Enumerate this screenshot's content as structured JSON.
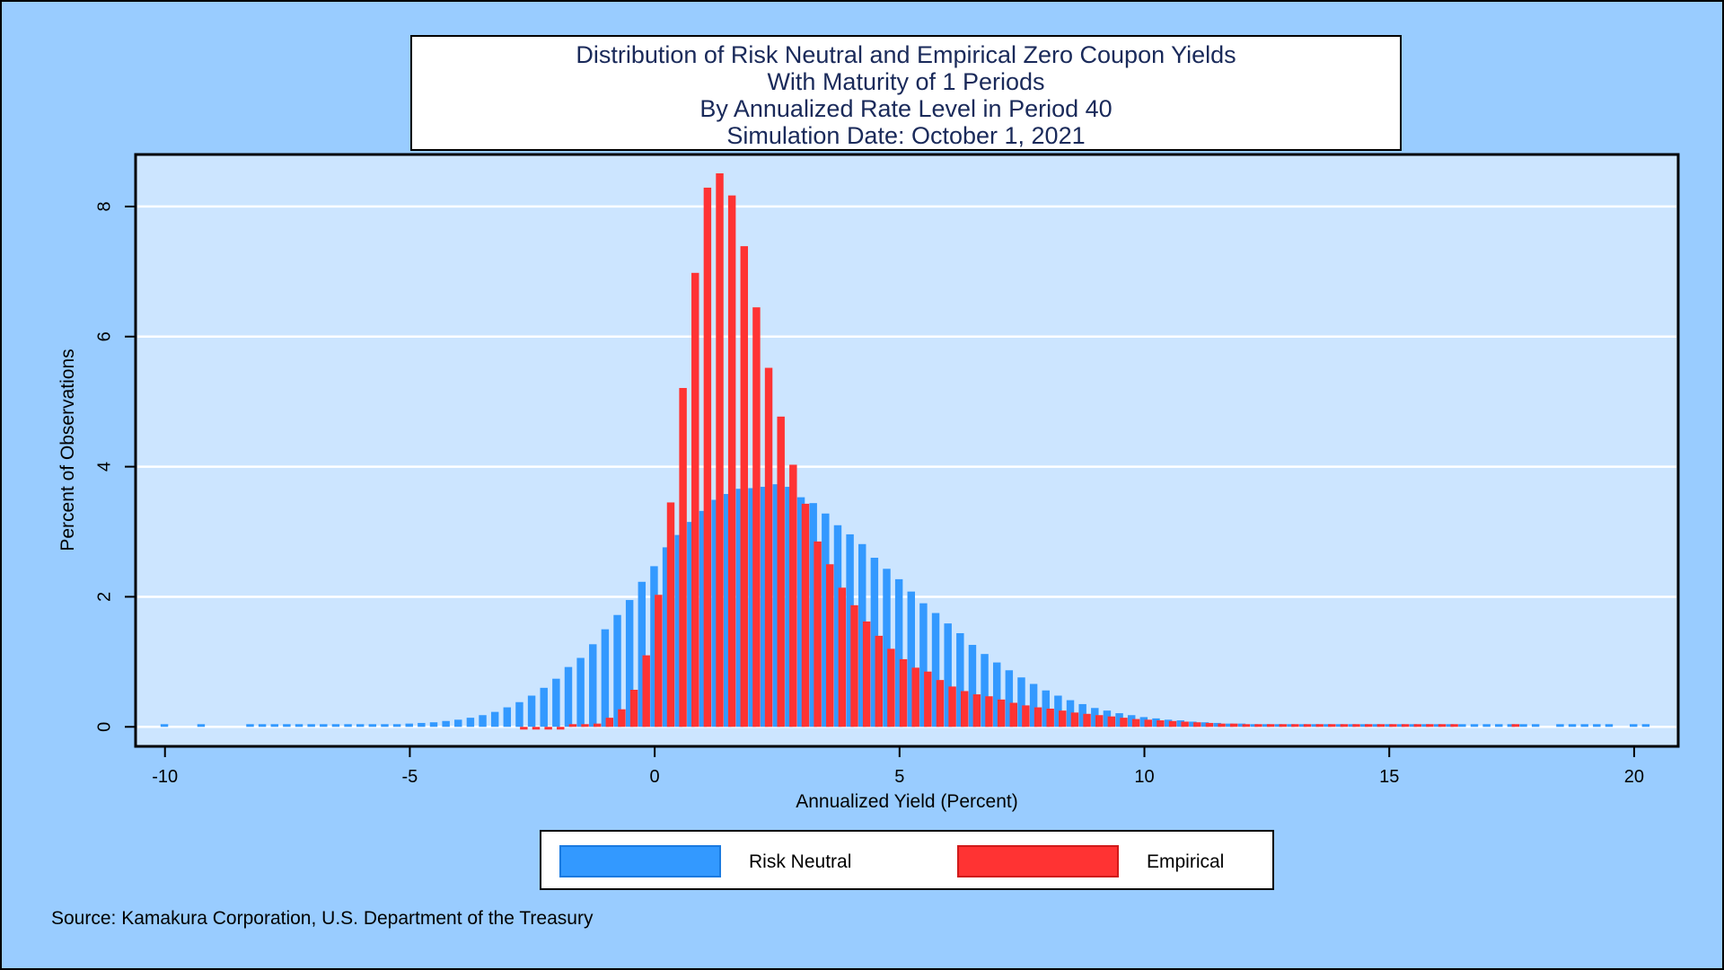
{
  "title_lines": [
    "Distribution of Risk Neutral and Empirical Zero Coupon Yields",
    "With Maturity of 1 Periods",
    "By Annualized Rate Level in Period 40",
    "Simulation Date: October 1, 2021"
  ],
  "source": "Source: Kamakura Corporation, U.S. Department of the Treasury",
  "colors": {
    "background": "#99ccff",
    "plot_background": "#cce5ff",
    "risk_neutral": "#3399ff",
    "empirical": "#ff3333"
  },
  "chart_data": {
    "type": "bar",
    "title": "Distribution of Risk Neutral and Empirical Zero Coupon Yields",
    "xlabel": "Annualized Yield (Percent)",
    "ylabel": "Percent of Observations",
    "xlim": [
      -10.6,
      20.9
    ],
    "ylim": [
      -0.3,
      8.8
    ],
    "xticks": [
      -10,
      -5,
      0,
      5,
      10,
      15,
      20
    ],
    "xtick_labels": [
      "-10",
      "-5",
      "0",
      "5",
      "10",
      "15",
      "20"
    ],
    "yticks": [
      0,
      2,
      4,
      6,
      8
    ],
    "ytick_labels": [
      "0",
      "2",
      "4",
      "6",
      "8"
    ],
    "grid": true,
    "legend_position": "bottom",
    "series": [
      {
        "name": "Risk Neutral",
        "points": [
          [
            -10.0,
            0.02
          ],
          [
            -9.25,
            0.02
          ],
          [
            -8.25,
            0.02
          ],
          [
            -8.0,
            0.02
          ],
          [
            -7.75,
            0.02
          ],
          [
            -7.5,
            0.02
          ],
          [
            -7.25,
            0.02
          ],
          [
            -7.0,
            0.02
          ],
          [
            -6.75,
            0.02
          ],
          [
            -6.5,
            0.02
          ],
          [
            -6.25,
            0.02
          ],
          [
            -6.0,
            0.03
          ],
          [
            -5.75,
            0.03
          ],
          [
            -5.5,
            0.04
          ],
          [
            -5.25,
            0.04
          ],
          [
            -5.0,
            0.05
          ],
          [
            -4.75,
            0.06
          ],
          [
            -4.5,
            0.07
          ],
          [
            -4.25,
            0.09
          ],
          [
            -4.0,
            0.11
          ],
          [
            -3.75,
            0.14
          ],
          [
            -3.5,
            0.18
          ],
          [
            -3.25,
            0.23
          ],
          [
            -3.0,
            0.3
          ],
          [
            -2.75,
            0.38
          ],
          [
            -2.5,
            0.48
          ],
          [
            -2.25,
            0.6
          ],
          [
            -2.0,
            0.74
          ],
          [
            -1.75,
            0.92
          ],
          [
            -1.5,
            1.06
          ],
          [
            -1.25,
            1.27
          ],
          [
            -1.0,
            1.5
          ],
          [
            -0.75,
            1.72
          ],
          [
            -0.5,
            1.95
          ],
          [
            -0.25,
            2.23
          ],
          [
            0.0,
            2.47
          ],
          [
            0.25,
            2.76
          ],
          [
            0.5,
            2.95
          ],
          [
            0.75,
            3.15
          ],
          [
            1.0,
            3.32
          ],
          [
            1.25,
            3.49
          ],
          [
            1.5,
            3.58
          ],
          [
            1.75,
            3.66
          ],
          [
            2.0,
            3.67
          ],
          [
            2.25,
            3.69
          ],
          [
            2.5,
            3.73
          ],
          [
            2.75,
            3.69
          ],
          [
            3.0,
            3.53
          ],
          [
            3.25,
            3.44
          ],
          [
            3.5,
            3.28
          ],
          [
            3.75,
            3.1
          ],
          [
            4.0,
            2.96
          ],
          [
            4.25,
            2.81
          ],
          [
            4.5,
            2.6
          ],
          [
            4.75,
            2.43
          ],
          [
            5.0,
            2.27
          ],
          [
            5.25,
            2.08
          ],
          [
            5.5,
            1.9
          ],
          [
            5.75,
            1.75
          ],
          [
            6.0,
            1.59
          ],
          [
            6.25,
            1.44
          ],
          [
            6.5,
            1.26
          ],
          [
            6.75,
            1.12
          ],
          [
            7.0,
            0.99
          ],
          [
            7.25,
            0.87
          ],
          [
            7.5,
            0.76
          ],
          [
            7.75,
            0.66
          ],
          [
            8.0,
            0.56
          ],
          [
            8.25,
            0.48
          ],
          [
            8.5,
            0.41
          ],
          [
            8.75,
            0.35
          ],
          [
            9.0,
            0.29
          ],
          [
            9.25,
            0.25
          ],
          [
            9.5,
            0.21
          ],
          [
            9.75,
            0.18
          ],
          [
            10.0,
            0.15
          ],
          [
            10.25,
            0.13
          ],
          [
            10.5,
            0.11
          ],
          [
            10.75,
            0.1
          ],
          [
            11.0,
            0.08
          ],
          [
            11.25,
            0.07
          ],
          [
            11.5,
            0.06
          ],
          [
            11.75,
            0.05
          ],
          [
            12.0,
            0.05
          ],
          [
            12.25,
            0.04
          ],
          [
            12.5,
            0.04
          ],
          [
            12.75,
            0.03
          ],
          [
            13.0,
            0.03
          ],
          [
            13.25,
            0.03
          ],
          [
            13.5,
            0.03
          ],
          [
            13.75,
            0.03
          ],
          [
            14.0,
            0.02
          ],
          [
            14.25,
            0.02
          ],
          [
            14.5,
            0.02
          ],
          [
            14.75,
            0.02
          ],
          [
            15.0,
            0.02
          ],
          [
            15.25,
            0.02
          ],
          [
            15.5,
            0.02
          ],
          [
            15.75,
            0.02
          ],
          [
            16.0,
            0.02
          ],
          [
            16.25,
            0.02
          ],
          [
            16.5,
            0.02
          ],
          [
            16.75,
            0.02
          ],
          [
            17.0,
            0.02
          ],
          [
            17.25,
            0.02
          ],
          [
            17.5,
            0.02
          ],
          [
            17.75,
            0.02
          ],
          [
            18.0,
            0.02
          ],
          [
            18.5,
            0.02
          ],
          [
            18.75,
            0.02
          ],
          [
            19.0,
            0.02
          ],
          [
            19.25,
            0.02
          ],
          [
            19.5,
            0.02
          ],
          [
            20.0,
            0.02
          ],
          [
            20.25,
            0.02
          ]
        ]
      },
      {
        "name": "Empirical",
        "points": [
          [
            -2.75,
            -0.01
          ],
          [
            -2.5,
            -0.01
          ],
          [
            -2.25,
            -0.01
          ],
          [
            -2.0,
            -0.01
          ],
          [
            -1.75,
            0.02
          ],
          [
            -1.5,
            0.03
          ],
          [
            -1.25,
            0.05
          ],
          [
            -1.0,
            0.14
          ],
          [
            -0.75,
            0.27
          ],
          [
            -0.5,
            0.57
          ],
          [
            -0.25,
            1.1
          ],
          [
            0.0,
            2.03
          ],
          [
            0.25,
            3.45
          ],
          [
            0.5,
            5.21
          ],
          [
            0.75,
            6.98
          ],
          [
            1.0,
            8.29
          ],
          [
            1.25,
            8.51
          ],
          [
            1.5,
            8.17
          ],
          [
            1.75,
            7.39
          ],
          [
            2.0,
            6.45
          ],
          [
            2.25,
            5.52
          ],
          [
            2.5,
            4.77
          ],
          [
            2.75,
            4.03
          ],
          [
            3.0,
            3.43
          ],
          [
            3.25,
            2.85
          ],
          [
            3.5,
            2.5
          ],
          [
            3.75,
            2.14
          ],
          [
            4.0,
            1.87
          ],
          [
            4.25,
            1.62
          ],
          [
            4.5,
            1.4
          ],
          [
            4.75,
            1.2
          ],
          [
            5.0,
            1.04
          ],
          [
            5.25,
            0.91
          ],
          [
            5.5,
            0.85
          ],
          [
            5.75,
            0.72
          ],
          [
            6.0,
            0.62
          ],
          [
            6.25,
            0.55
          ],
          [
            6.5,
            0.5
          ],
          [
            6.75,
            0.47
          ],
          [
            7.0,
            0.42
          ],
          [
            7.25,
            0.37
          ],
          [
            7.5,
            0.33
          ],
          [
            7.75,
            0.3
          ],
          [
            8.0,
            0.28
          ],
          [
            8.25,
            0.25
          ],
          [
            8.5,
            0.22
          ],
          [
            8.75,
            0.2
          ],
          [
            9.0,
            0.18
          ],
          [
            9.25,
            0.16
          ],
          [
            9.5,
            0.14
          ],
          [
            9.75,
            0.12
          ],
          [
            10.0,
            0.11
          ],
          [
            10.25,
            0.1
          ],
          [
            10.5,
            0.09
          ],
          [
            10.75,
            0.08
          ],
          [
            11.0,
            0.07
          ],
          [
            11.25,
            0.06
          ],
          [
            11.5,
            0.05
          ],
          [
            11.75,
            0.05
          ],
          [
            12.0,
            0.04
          ],
          [
            12.25,
            0.04
          ],
          [
            12.5,
            0.04
          ],
          [
            12.75,
            0.03
          ],
          [
            13.0,
            0.03
          ],
          [
            13.25,
            0.03
          ],
          [
            13.5,
            0.03
          ],
          [
            13.75,
            0.03
          ],
          [
            14.0,
            0.03
          ],
          [
            14.25,
            0.03
          ],
          [
            14.5,
            0.03
          ],
          [
            14.75,
            0.03
          ],
          [
            15.0,
            0.03
          ],
          [
            15.25,
            0.03
          ],
          [
            15.5,
            0.03
          ],
          [
            15.75,
            0.03
          ],
          [
            16.0,
            0.03
          ],
          [
            16.25,
            0.03
          ],
          [
            17.5,
            0.03
          ]
        ]
      }
    ]
  }
}
